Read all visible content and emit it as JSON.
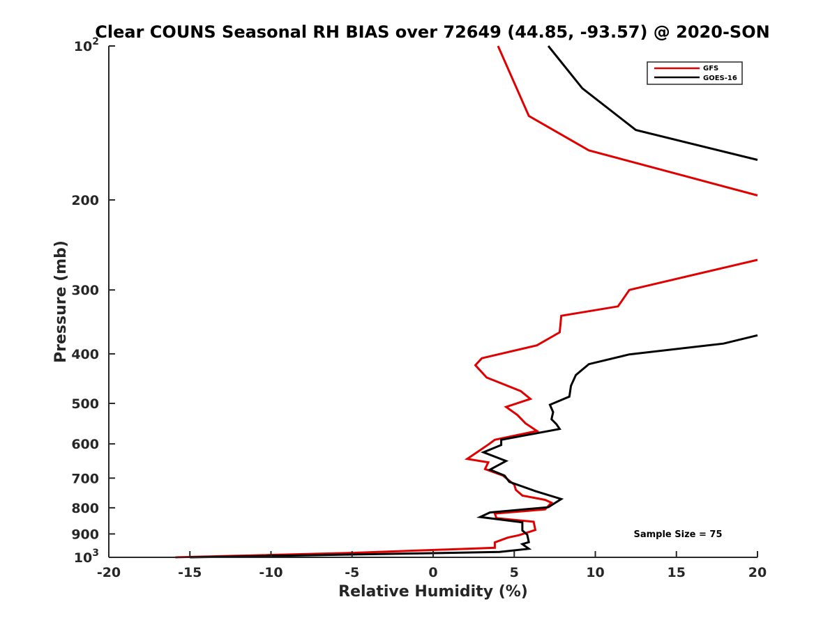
{
  "chart_data": {
    "type": "line",
    "title": "Clear COUNS Seasonal RH BIAS over 72649 (44.85, -93.57) @ 2020-SON",
    "xlabel": "Relative Humidity (%)",
    "ylabel": "Pressure (mb)",
    "xlim": [
      -20,
      20
    ],
    "ylim": [
      100,
      1000
    ],
    "yscale": "log",
    "y_reversed": true,
    "grid": false,
    "legend_position": "top-right",
    "annotation": "Sample Size = 75",
    "x_ticks": [
      "-20",
      "-15",
      "-10",
      "-5",
      "0",
      "5",
      "10",
      "15",
      "20"
    ],
    "y_ticks": [
      {
        "value": 100,
        "base": "10",
        "exp": "2"
      },
      {
        "value": 200,
        "label": "200"
      },
      {
        "value": 300,
        "label": "300"
      },
      {
        "value": 400,
        "label": "400"
      },
      {
        "value": 500,
        "label": "500"
      },
      {
        "value": 600,
        "label": "600"
      },
      {
        "value": 700,
        "label": "700"
      },
      {
        "value": 800,
        "label": "800"
      },
      {
        "value": 900,
        "label": "900"
      },
      {
        "value": 1000,
        "base": "10",
        "exp": "3"
      }
    ],
    "series": [
      {
        "name": "GFS",
        "color": "#e00000",
        "segments": [
          [
            [
              4.0,
              100
            ],
            [
              5.9,
              137
            ],
            [
              9.6,
              160
            ],
            [
              20,
              196
            ]
          ],
          [
            [
              20,
              262
            ],
            [
              12.1,
              300
            ],
            [
              11.4,
              323
            ],
            [
              7.9,
              337
            ],
            [
              7.8,
              363
            ],
            [
              6.4,
              385
            ],
            [
              3.0,
              408
            ],
            [
              2.6,
              421
            ],
            [
              3.3,
              445
            ],
            [
              5.4,
              473
            ],
            [
              6.0,
              490
            ],
            [
              4.5,
              508
            ],
            [
              5.2,
              527
            ],
            [
              5.7,
              547
            ],
            [
              6.4,
              566
            ],
            [
              3.8,
              589
            ],
            [
              3.4,
              602
            ],
            [
              2.7,
              623
            ],
            [
              2.1,
              642
            ],
            [
              3.4,
              652
            ],
            [
              3.2,
              672
            ],
            [
              4.3,
              692
            ],
            [
              5.0,
              721
            ],
            [
              5.1,
              738
            ],
            [
              5.5,
              757
            ],
            [
              6.9,
              772
            ],
            [
              7.3,
              782
            ],
            [
              6.9,
              806
            ],
            [
              3.8,
              821
            ],
            [
              3.9,
              838
            ],
            [
              6.2,
              852
            ],
            [
              6.3,
              884
            ],
            [
              5.3,
              905
            ],
            [
              4.6,
              915
            ],
            [
              3.8,
              935
            ],
            [
              3.8,
              958
            ],
            [
              -5.0,
              980
            ],
            [
              -15.9,
              1000
            ]
          ]
        ]
      },
      {
        "name": "GOES-16",
        "color": "#000000",
        "segments": [
          [
            [
              7.1,
              100
            ],
            [
              9.2,
              121
            ],
            [
              12.5,
              146
            ],
            [
              20,
              167
            ]
          ],
          [
            [
              20,
              368
            ],
            [
              17.9,
              382
            ],
            [
              12.1,
              401
            ],
            [
              9.6,
              419
            ],
            [
              8.8,
              440
            ],
            [
              8.5,
              462
            ],
            [
              8.4,
              485
            ],
            [
              7.2,
              503
            ],
            [
              7.4,
              520
            ],
            [
              7.3,
              537
            ],
            [
              7.6,
              549
            ],
            [
              7.8,
              561
            ],
            [
              4.2,
              589
            ],
            [
              4.2,
              603
            ],
            [
              3.1,
              623
            ],
            [
              4.5,
              648
            ],
            [
              3.5,
              674
            ],
            [
              4.4,
              692
            ],
            [
              4.7,
              712
            ],
            [
              6.3,
              742
            ],
            [
              7.9,
              769
            ],
            [
              7.1,
              798
            ],
            [
              3.5,
              817
            ],
            [
              2.9,
              834
            ],
            [
              5.5,
              854
            ],
            [
              5.5,
              886
            ],
            [
              5.8,
              903
            ],
            [
              5.9,
              934
            ],
            [
              5.5,
              942
            ],
            [
              5.9,
              962
            ],
            [
              4.1,
              976
            ],
            [
              -15.0,
              1000
            ]
          ]
        ]
      }
    ]
  },
  "colors": {
    "axis": "#262626",
    "gfs": "#e00000",
    "goes": "#000000"
  }
}
